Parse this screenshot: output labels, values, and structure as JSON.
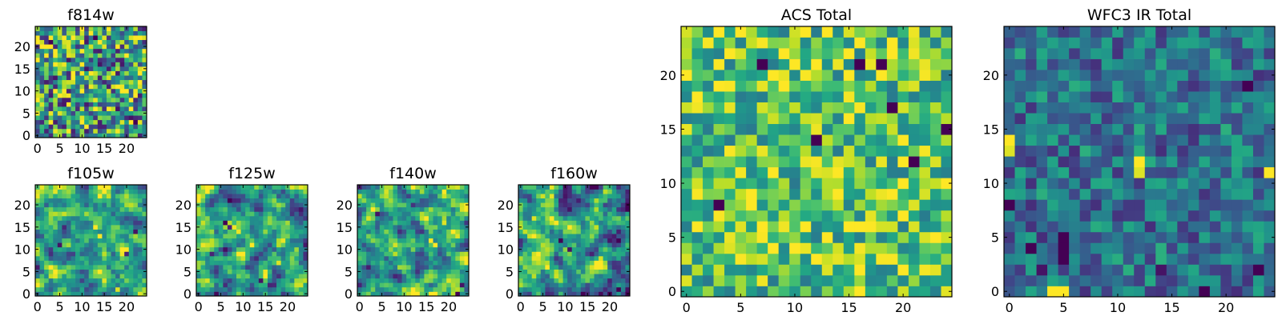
{
  "chart_data": [
    {
      "type": "heatmap",
      "title": "f814w",
      "xlabel": "",
      "ylabel": "",
      "grid_size": [
        25,
        25
      ],
      "xlim": [
        -0.5,
        24.5
      ],
      "ylim": [
        -0.5,
        24.5
      ],
      "xticks": [
        0,
        5,
        10,
        15,
        20
      ],
      "yticks": [
        0,
        5,
        10,
        15,
        20
      ],
      "colormap": "viridis",
      "pattern_seed": 11,
      "value_mean": 0.55,
      "value_spread": 0.55,
      "smooth": 0,
      "hot_pixels": [
        [
          8,
          14,
          1.0
        ],
        [
          3,
          21,
          0.0
        ],
        [
          18,
          6,
          0.05
        ],
        [
          13,
          22,
          0.0
        ],
        [
          22,
          3,
          0.0
        ],
        [
          6,
          9,
          0.95
        ],
        [
          15,
          2,
          0.1
        ],
        [
          20,
          18,
          1.0
        ]
      ]
    },
    {
      "type": "heatmap",
      "title": "f105w",
      "grid_size": [
        25,
        25
      ],
      "xlim": [
        -0.5,
        24.5
      ],
      "ylim": [
        -0.5,
        24.5
      ],
      "xticks": [
        0,
        5,
        10,
        15,
        20
      ],
      "yticks": [
        0,
        5,
        10,
        15,
        20
      ],
      "colormap": "viridis",
      "pattern_seed": 23,
      "value_mean": 0.6,
      "value_spread": 0.45,
      "smooth": 1,
      "hot_pixels": [
        [
          13,
          15,
          1.0
        ],
        [
          14,
          13,
          1.0
        ],
        [
          5,
          11,
          0.05
        ],
        [
          20,
          9,
          0.1
        ],
        [
          22,
          14,
          0.05
        ],
        [
          10,
          3,
          0.2
        ],
        [
          18,
          1,
          0.95
        ],
        [
          2,
          20,
          0.3
        ]
      ]
    },
    {
      "type": "heatmap",
      "title": "f125w",
      "grid_size": [
        25,
        25
      ],
      "xlim": [
        -0.5,
        24.5
      ],
      "ylim": [
        -0.5,
        24.5
      ],
      "xticks": [
        0,
        5,
        10,
        15,
        20
      ],
      "yticks": [
        0,
        5,
        10,
        15,
        20
      ],
      "colormap": "viridis",
      "pattern_seed": 37,
      "value_mean": 0.55,
      "value_spread": 0.5,
      "smooth": 1,
      "hot_pixels": [
        [
          6,
          16,
          0.0
        ],
        [
          7,
          15,
          0.1
        ],
        [
          12,
          11,
          1.0
        ],
        [
          14,
          3,
          0.05
        ],
        [
          3,
          9,
          0.1
        ],
        [
          21,
          20,
          0.2
        ],
        [
          18,
          7,
          0.95
        ]
      ]
    },
    {
      "type": "heatmap",
      "title": "f140w",
      "grid_size": [
        25,
        25
      ],
      "xlim": [
        -0.5,
        24.5
      ],
      "ylim": [
        -0.5,
        24.5
      ],
      "xticks": [
        0,
        5,
        10,
        15,
        20
      ],
      "yticks": [
        0,
        5,
        10,
        15,
        20
      ],
      "colormap": "viridis",
      "pattern_seed": 41,
      "value_mean": 0.58,
      "value_spread": 0.5,
      "smooth": 1,
      "hot_pixels": [
        [
          4,
          18,
          0.05
        ],
        [
          16,
          12,
          1.0
        ],
        [
          17,
          11,
          1.0
        ],
        [
          8,
          4,
          0.1
        ],
        [
          22,
          0,
          0.0
        ],
        [
          23,
          2,
          0.05
        ],
        [
          12,
          20,
          0.15
        ],
        [
          19,
          16,
          0.95
        ]
      ]
    },
    {
      "type": "heatmap",
      "title": "f160w",
      "grid_size": [
        25,
        25
      ],
      "xlim": [
        -0.5,
        24.5
      ],
      "ylim": [
        -0.5,
        24.5
      ],
      "xticks": [
        0,
        5,
        10,
        15,
        20
      ],
      "yticks": [
        0,
        5,
        10,
        15,
        20
      ],
      "colormap": "viridis",
      "pattern_seed": 53,
      "value_mean": 0.55,
      "value_spread": 0.5,
      "smooth": 1,
      "hot_pixels": [
        [
          9,
          12,
          0.0
        ],
        [
          11,
          10,
          0.05
        ],
        [
          20,
          3,
          0.1
        ],
        [
          22,
          1,
          0.0
        ],
        [
          3,
          17,
          0.95
        ],
        [
          15,
          20,
          0.2
        ],
        [
          6,
          6,
          1.0
        ]
      ]
    },
    {
      "type": "heatmap",
      "title": "ACS Total",
      "grid_size": [
        25,
        25
      ],
      "xlim": [
        -0.5,
        24.5
      ],
      "ylim": [
        -0.5,
        24.5
      ],
      "xticks": [
        0,
        5,
        10,
        15,
        20
      ],
      "yticks": [
        0,
        5,
        10,
        15,
        20
      ],
      "colormap": "viridis",
      "pattern_seed": 67,
      "value_mean": 0.72,
      "value_spread": 0.35,
      "smooth": 0,
      "hot_pixels": [
        [
          7,
          21,
          0.0
        ],
        [
          18,
          21,
          0.0
        ],
        [
          16,
          21,
          0.0
        ],
        [
          19,
          22,
          1.0
        ],
        [
          12,
          14,
          0.0
        ],
        [
          19,
          17,
          0.0
        ],
        [
          24,
          15,
          0.0
        ],
        [
          3,
          8,
          0.0
        ],
        [
          21,
          12,
          0.0
        ],
        [
          1,
          18,
          1.0
        ],
        [
          20,
          7,
          1.0
        ],
        [
          10,
          4,
          1.0
        ],
        [
          14,
          11,
          1.0
        ],
        [
          23,
          5,
          1.0
        ]
      ]
    },
    {
      "type": "heatmap",
      "title": "WFC3 IR Total",
      "grid_size": [
        25,
        25
      ],
      "xlim": [
        -0.5,
        24.5
      ],
      "ylim": [
        -0.5,
        24.5
      ],
      "xticks": [
        0,
        5,
        10,
        15,
        20
      ],
      "yticks": [
        0,
        5,
        10,
        15,
        20
      ],
      "colormap": "viridis",
      "pattern_seed": 79,
      "value_mean": 0.38,
      "value_spread": 0.28,
      "smooth": 0,
      "hot_pixels": [
        [
          0,
          14,
          1.0
        ],
        [
          0,
          13,
          0.95
        ],
        [
          12,
          12,
          1.0
        ],
        [
          12,
          11,
          0.95
        ],
        [
          24,
          11,
          1.0
        ],
        [
          4,
          0,
          1.0
        ],
        [
          5,
          0,
          1.0
        ],
        [
          5,
          5,
          0.0
        ],
        [
          5,
          4,
          0.0
        ],
        [
          5,
          3,
          0.0
        ],
        [
          2,
          4,
          0.0
        ],
        [
          0,
          8,
          0.0
        ],
        [
          22,
          19,
          0.0
        ],
        [
          3,
          2,
          0.05
        ],
        [
          14,
          2,
          0.05
        ],
        [
          18,
          0,
          0.0
        ],
        [
          23,
          2,
          0.0
        ]
      ]
    }
  ]
}
